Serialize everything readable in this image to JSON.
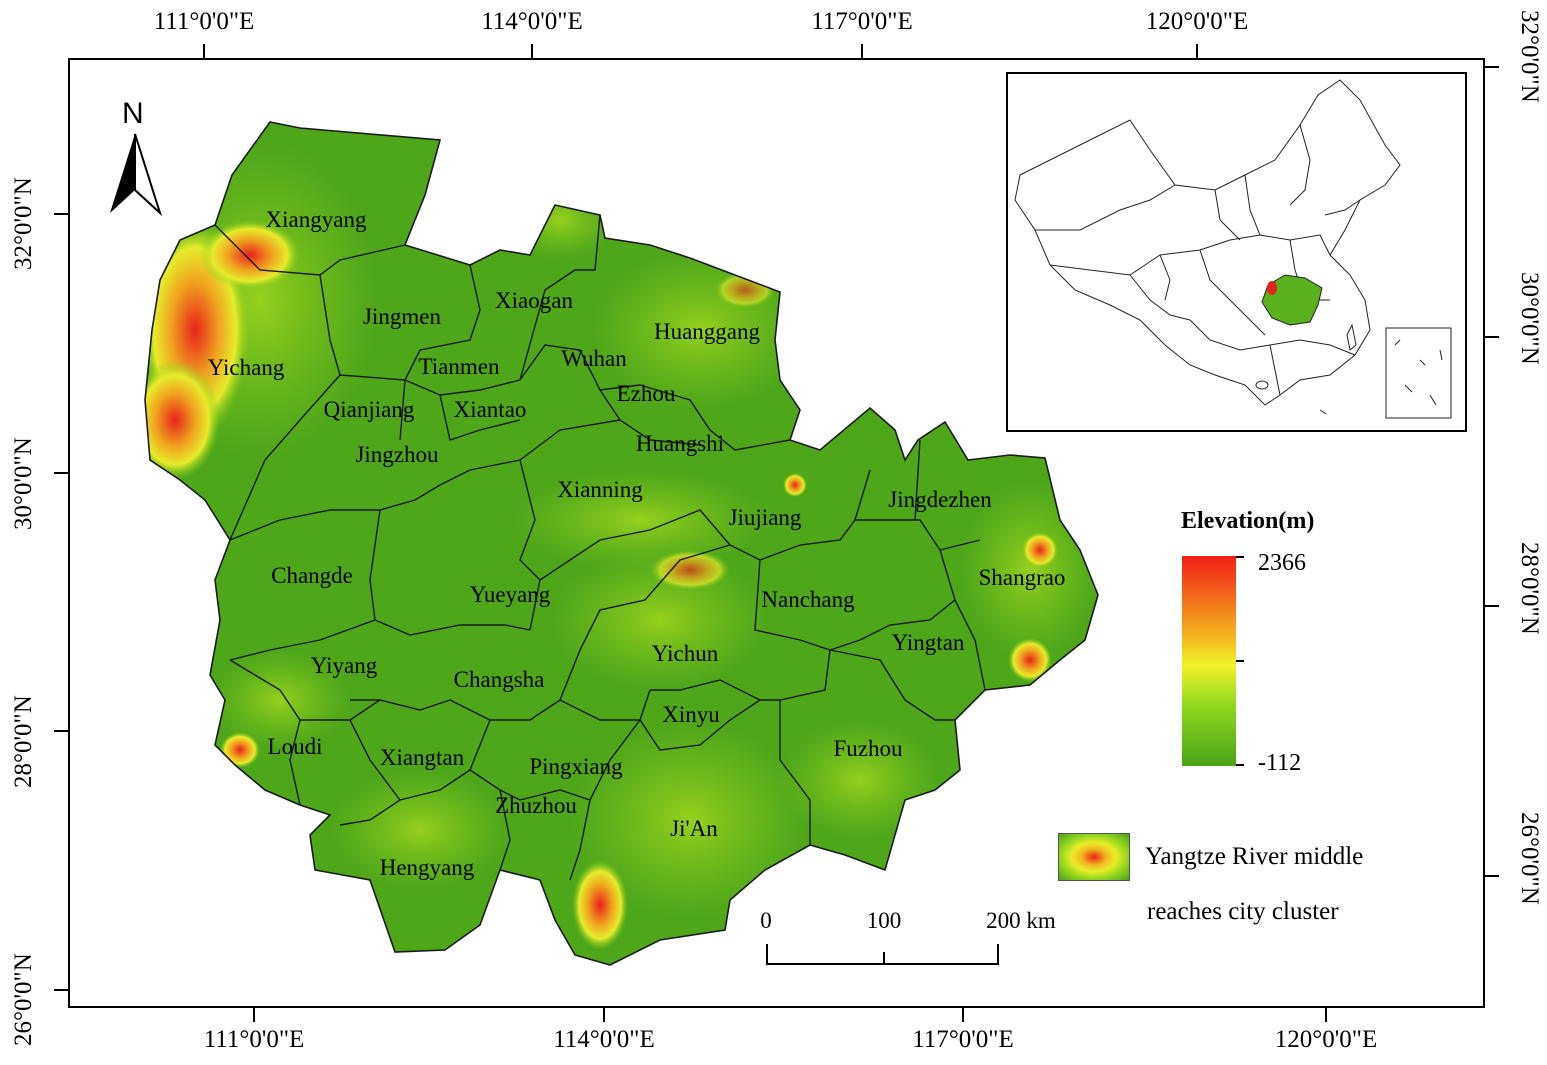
{
  "axis_labels": {
    "top": [
      "111°0'0\"E",
      "114°0'0\"E",
      "117°0'0\"E",
      "120°0'0\"E"
    ],
    "bottom": [
      "111°0'0\"E",
      "114°0'0\"E",
      "117°0'0\"E",
      "120°0'0\"E"
    ],
    "left": [
      "32°0'0\"N",
      "30°0'0\"N",
      "28°0'0\"N",
      "26°0'0\"N"
    ],
    "right": [
      "32°0'0\"N",
      "30°0'0\"N",
      "28°0'0\"N",
      "26°0'0\"N"
    ]
  },
  "north_arrow": {
    "label": "N",
    "icon": "north-arrow-icon"
  },
  "cities": [
    "Xiangyang",
    "Jingmen",
    "Xiaogan",
    "Huanggang",
    "Yichang",
    "Tianmen",
    "Wuhan",
    "Ezhou",
    "Qianjiang",
    "Xiantao",
    "Huangshi",
    "Jingzhou",
    "Xianning",
    "Jiujiang",
    "Jingdezhen",
    "Changde",
    "Yueyang",
    "Nanchang",
    "Shangrao",
    "Yingtan",
    "Yiyang",
    "Changsha",
    "Yichun",
    "Xinyu",
    "Loudi",
    "Xiangtan",
    "Pingxiang",
    "Fuzhou",
    "Zhuzhou",
    "Ji'An",
    "Hengyang"
  ],
  "legend": {
    "title": "Elevation(m)",
    "max": "2366",
    "min": "-112",
    "gradient_colors": [
      "#f21d17",
      "#f3b41e",
      "#f2f32a",
      "#8cd71e",
      "#4aa219"
    ],
    "area_line1": "Yangtze River middle",
    "area_line2": "reaches city cluster"
  },
  "scale_bar": {
    "labels": [
      "0",
      "100",
      "200 km"
    ]
  },
  "inset": {
    "description_icon": "china-locator-map-icon"
  },
  "colors": {
    "base_green": "#4ea619",
    "light_green": "#7cc81c",
    "yellow": "#e7ee2a",
    "red": "#e82a18"
  }
}
